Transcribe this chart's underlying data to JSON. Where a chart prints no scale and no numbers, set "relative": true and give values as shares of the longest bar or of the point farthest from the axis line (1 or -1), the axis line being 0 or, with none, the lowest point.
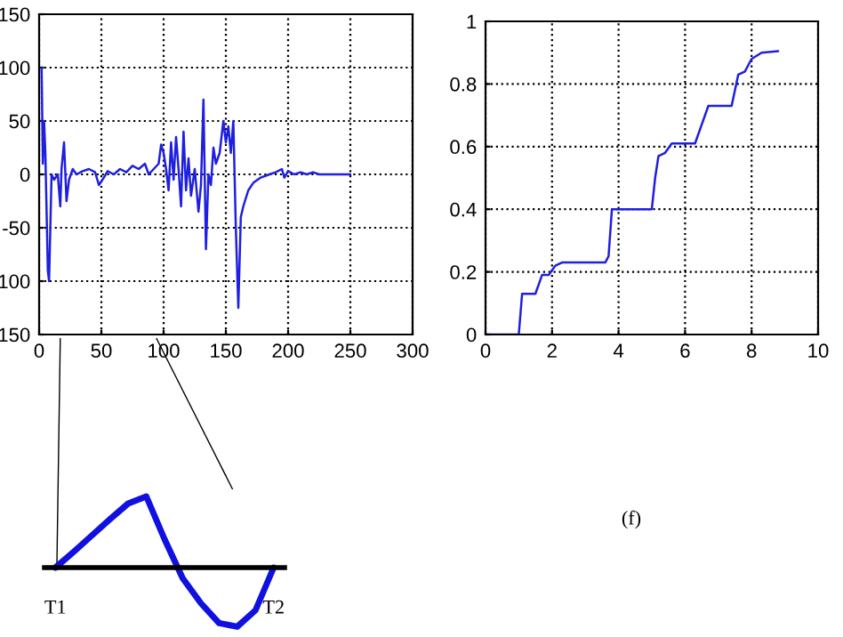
{
  "chart_data": [
    {
      "type": "line",
      "x": [
        2,
        3,
        4,
        5,
        7,
        8,
        10,
        12,
        15,
        17,
        18,
        20,
        22,
        24,
        27,
        30,
        35,
        40,
        45,
        48,
        52,
        55,
        60,
        65,
        70,
        75,
        80,
        85,
        88,
        92,
        96,
        98,
        100,
        102,
        104,
        106,
        108,
        110,
        112,
        114,
        116,
        118,
        120,
        122,
        125,
        128,
        130,
        132,
        134,
        136,
        138,
        140,
        142,
        145,
        148,
        150,
        152,
        154,
        156,
        157,
        158,
        160,
        162,
        164,
        168,
        172,
        178,
        185,
        190,
        195,
        197,
        200,
        205,
        210,
        215,
        220,
        225,
        250
      ],
      "series": [
        {
          "color": "#1f1fe0",
          "values": [
            100,
            10,
            50,
            20,
            -90,
            -100,
            0,
            -5,
            0,
            -30,
            5,
            30,
            -25,
            -5,
            5,
            0,
            3,
            5,
            2,
            -10,
            -3,
            3,
            0,
            5,
            2,
            8,
            5,
            10,
            0,
            5,
            10,
            28,
            20,
            5,
            -15,
            30,
            -5,
            35,
            5,
            -30,
            40,
            -15,
            15,
            -20,
            5,
            -35,
            -10,
            70,
            -70,
            0,
            -10,
            25,
            10,
            20,
            50,
            30,
            45,
            20,
            50,
            0,
            -50,
            -125,
            -40,
            -30,
            -15,
            -8,
            -3,
            0,
            2,
            5,
            -3,
            3,
            0,
            2,
            0,
            2,
            0,
            0
          ]
        }
      ],
      "xlim": [
        0,
        300
      ],
      "xticks": [
        0,
        50,
        100,
        150,
        200,
        250,
        300
      ],
      "ylim": [
        -150,
        150
      ],
      "yticks": [
        {
          "value": -150,
          "label": "150"
        },
        {
          "value": -100,
          "label": "100"
        },
        -50,
        0,
        50,
        100,
        150
      ],
      "grid": true
    },
    {
      "type": "line",
      "x": [
        0,
        1,
        1.1,
        1.5,
        1.7,
        1.9,
        2.1,
        2.3,
        3.6,
        3.7,
        3.8,
        5.0,
        5.1,
        5.2,
        5.4,
        5.6,
        6.3,
        6.5,
        6.7,
        7.4,
        7.6,
        7.8,
        8.0,
        8.3,
        8.8
      ],
      "series": [
        {
          "color": "#1f1fe0",
          "values": [
            0,
            0,
            0.13,
            0.13,
            0.19,
            0.19,
            0.22,
            0.23,
            0.23,
            0.25,
            0.4,
            0.4,
            0.5,
            0.57,
            0.58,
            0.61,
            0.61,
            0.67,
            0.73,
            0.73,
            0.83,
            0.84,
            0.88,
            0.9,
            0.905
          ]
        }
      ],
      "xlim": [
        0,
        10
      ],
      "xticks": [
        0,
        2,
        4,
        6,
        8,
        10
      ],
      "ylim": [
        0,
        1
      ],
      "yticks": [
        0,
        0.2,
        0.4,
        0.6,
        0.8,
        1
      ],
      "grid": true,
      "annotations": [
        "(f)"
      ]
    },
    {
      "type": "line",
      "relative": true,
      "categories": [
        "T1",
        null,
        null,
        null,
        null,
        null,
        null,
        null,
        null,
        null,
        null,
        null,
        "T2"
      ],
      "series": [
        {
          "color": "#1010e0",
          "values": [
            0,
            0.22,
            0.45,
            0.68,
            0.9,
            1,
            0.4,
            -0.15,
            -0.5,
            -0.78,
            -0.83,
            -0.6,
            0
          ]
        }
      ]
    }
  ]
}
